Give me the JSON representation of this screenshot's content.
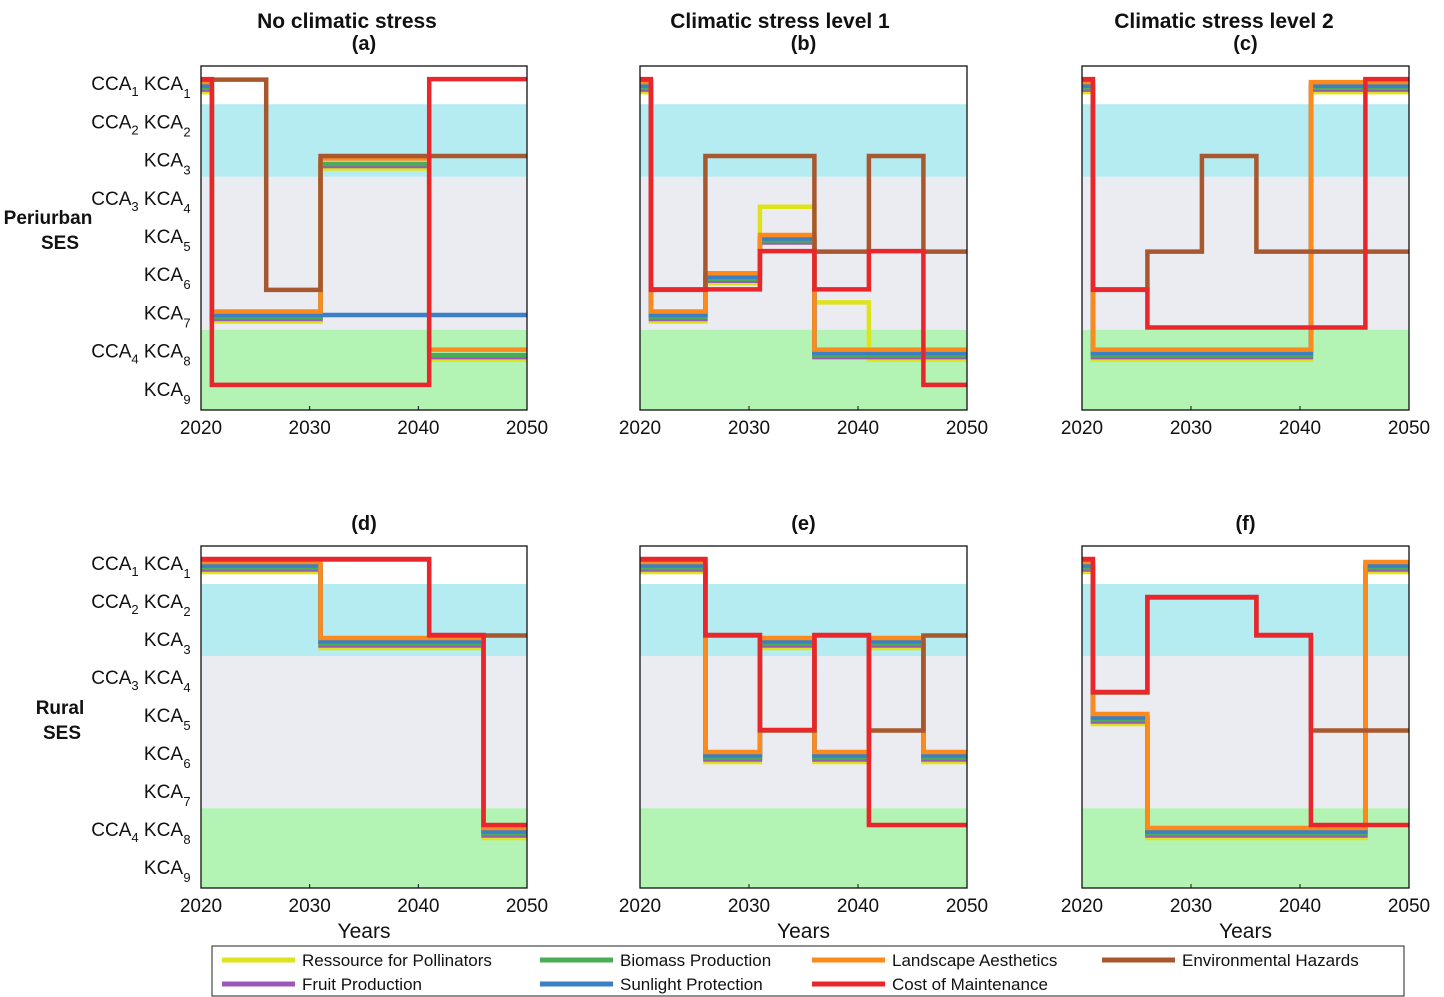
{
  "figure": {
    "column_titles": [
      "No climatic stress",
      "Climatic stress level 1",
      "Climatic stress level 2"
    ],
    "row_labels": [
      [
        "Periurban",
        "SES"
      ],
      [
        "Rural",
        "SES"
      ]
    ],
    "panel_letters": [
      "(a)",
      "(b)",
      "(c)",
      "(d)",
      "(e)",
      "(f)"
    ],
    "x_label": "Years",
    "y_ticks": [
      {
        "pre": "CCA",
        "pre_sub": "1",
        "main": "KCA",
        "sub": "1"
      },
      {
        "pre": "CCA",
        "pre_sub": "2",
        "main": "KCA",
        "sub": "2"
      },
      {
        "pre": "",
        "pre_sub": "",
        "main": "KCA",
        "sub": "3"
      },
      {
        "pre": "CCA",
        "pre_sub": "3",
        "main": "KCA",
        "sub": "4"
      },
      {
        "pre": "",
        "pre_sub": "",
        "main": "KCA",
        "sub": "5"
      },
      {
        "pre": "",
        "pre_sub": "",
        "main": "KCA",
        "sub": "6"
      },
      {
        "pre": "",
        "pre_sub": "",
        "main": "KCA",
        "sub": "7"
      },
      {
        "pre": "CCA",
        "pre_sub": "4",
        "main": "KCA",
        "sub": "8"
      },
      {
        "pre": "",
        "pre_sub": "",
        "main": "KCA",
        "sub": "9"
      }
    ],
    "background_bands": [
      {
        "from": 0.5,
        "to": 1.5,
        "color": "#ffffff"
      },
      {
        "from": 1.5,
        "to": 3.4,
        "color": "#b4ecf2"
      },
      {
        "from": 3.4,
        "to": 7.4,
        "color": "#ebebf2"
      },
      {
        "from": 7.4,
        "to": 9.5,
        "color": "#b3f3b3"
      }
    ]
  },
  "legend": [
    {
      "label": "Ressource for Pollinators",
      "color": "#dfe31c"
    },
    {
      "label": "Biomass Production",
      "color": "#4aad55"
    },
    {
      "label": "Landscape Aesthetics",
      "color": "#ff8a1c"
    },
    {
      "label": "Environmental Hazards",
      "color": "#a8582e"
    },
    {
      "label": "Fruit Production",
      "color": "#9b59b6"
    },
    {
      "label": "Sunlight Protection",
      "color": "#3b7fc4"
    },
    {
      "label": "Cost of Maintenance",
      "color": "#e8262b"
    }
  ],
  "chart_data": [
    {
      "type": "line",
      "panel": "(a)",
      "title": "No climatic stress",
      "xlim": [
        2020,
        2050
      ],
      "ylim": [
        0.5,
        9.5
      ],
      "x_ticks": [
        2020,
        2030,
        2040,
        2050
      ],
      "series": [
        {
          "name": "Ressource for Pollinators",
          "x": [
            2020,
            2021,
            2031,
            2041,
            2050
          ],
          "y": [
            1,
            7,
            3,
            8,
            8
          ]
        },
        {
          "name": "Fruit Production",
          "x": [
            2020,
            2021,
            2031,
            2041,
            2050
          ],
          "y": [
            1,
            7,
            3,
            8,
            8
          ]
        },
        {
          "name": "Biomass Production",
          "x": [
            2020,
            2021,
            2031,
            2041,
            2050
          ],
          "y": [
            1,
            7,
            3,
            8,
            8
          ]
        },
        {
          "name": "Sunlight Protection",
          "x": [
            2020,
            2021,
            2050
          ],
          "y": [
            1,
            7,
            7
          ]
        },
        {
          "name": "Landscape Aesthetics",
          "x": [
            2020,
            2021,
            2031,
            2041,
            2050
          ],
          "y": [
            1,
            7,
            3,
            8,
            8
          ]
        },
        {
          "name": "Environmental Hazards",
          "x": [
            2020,
            2026,
            2031,
            2050
          ],
          "y": [
            1,
            6.5,
            3,
            3
          ]
        },
        {
          "name": "Cost of Maintenance",
          "x": [
            2020,
            2021,
            2041,
            2050
          ],
          "y": [
            1,
            9,
            1,
            1
          ]
        }
      ]
    },
    {
      "type": "line",
      "panel": "(b)",
      "title": "Climatic stress level 1",
      "xlim": [
        2020,
        2050
      ],
      "ylim": [
        0.5,
        9.5
      ],
      "x_ticks": [
        2020,
        2030,
        2040,
        2050
      ],
      "series": [
        {
          "name": "Ressource for Pollinators",
          "x": [
            2020,
            2021,
            2026,
            2031,
            2036,
            2041,
            2050
          ],
          "y": [
            1,
            7,
            6,
            4,
            6.5,
            8,
            8
          ]
        },
        {
          "name": "Fruit Production",
          "x": [
            2020,
            2021,
            2026,
            2031,
            2036,
            2050
          ],
          "y": [
            1,
            7,
            6,
            5,
            8,
            8
          ]
        },
        {
          "name": "Biomass Production",
          "x": [
            2020,
            2021,
            2026,
            2031,
            2036,
            2050
          ],
          "y": [
            1,
            7,
            6,
            5,
            8,
            8
          ]
        },
        {
          "name": "Sunlight Protection",
          "x": [
            2020,
            2021,
            2026,
            2031,
            2036,
            2050
          ],
          "y": [
            1,
            7,
            6,
            5,
            8,
            8
          ]
        },
        {
          "name": "Landscape Aesthetics",
          "x": [
            2020,
            2021,
            2026,
            2031,
            2036,
            2050
          ],
          "y": [
            1,
            7,
            6,
            5,
            8,
            8
          ]
        },
        {
          "name": "Environmental Hazards",
          "x": [
            2020,
            2021,
            2026,
            2036,
            2041,
            2046,
            2050
          ],
          "y": [
            1,
            6.5,
            3,
            5.5,
            3,
            5.5,
            5.5
          ]
        },
        {
          "name": "Cost of Maintenance",
          "x": [
            2020,
            2021,
            2031,
            2036,
            2041,
            2046,
            2050
          ],
          "y": [
            1,
            6.5,
            5.5,
            6.5,
            5.5,
            9,
            9
          ]
        }
      ]
    },
    {
      "type": "line",
      "panel": "(c)",
      "title": "Climatic stress level 2",
      "xlim": [
        2020,
        2050
      ],
      "ylim": [
        0.5,
        9.5
      ],
      "x_ticks": [
        2020,
        2030,
        2040,
        2050
      ],
      "series": [
        {
          "name": "Ressource for Pollinators",
          "x": [
            2020,
            2021,
            2041,
            2050
          ],
          "y": [
            1,
            8,
            1,
            1
          ]
        },
        {
          "name": "Fruit Production",
          "x": [
            2020,
            2021,
            2041,
            2050
          ],
          "y": [
            1,
            8,
            1,
            1
          ]
        },
        {
          "name": "Biomass Production",
          "x": [
            2020,
            2021,
            2041,
            2050
          ],
          "y": [
            1,
            8,
            1,
            1
          ]
        },
        {
          "name": "Sunlight Protection",
          "x": [
            2020,
            2021,
            2041,
            2050
          ],
          "y": [
            1,
            8,
            1,
            1
          ]
        },
        {
          "name": "Landscape Aesthetics",
          "x": [
            2020,
            2021,
            2041,
            2050
          ],
          "y": [
            1,
            8,
            1,
            1
          ]
        },
        {
          "name": "Environmental Hazards",
          "x": [
            2020,
            2021,
            2026,
            2031,
            2036,
            2050
          ],
          "y": [
            1,
            6.5,
            5.5,
            3,
            5.5,
            5.5
          ]
        },
        {
          "name": "Cost of Maintenance",
          "x": [
            2020,
            2021,
            2026,
            2046,
            2050
          ],
          "y": [
            1,
            6.5,
            7.5,
            1,
            1
          ]
        }
      ]
    },
    {
      "type": "line",
      "panel": "(d)",
      "title": "",
      "xlim": [
        2020,
        2050
      ],
      "ylim": [
        0.5,
        9.5
      ],
      "x_ticks": [
        2020,
        2030,
        2040,
        2050
      ],
      "series": [
        {
          "name": "Ressource for Pollinators",
          "x": [
            2020,
            2031,
            2046,
            2050
          ],
          "y": [
            1,
            3,
            8,
            8
          ]
        },
        {
          "name": "Fruit Production",
          "x": [
            2020,
            2031,
            2046,
            2050
          ],
          "y": [
            1,
            3,
            8,
            8
          ]
        },
        {
          "name": "Biomass Production",
          "x": [
            2020,
            2031,
            2046,
            2050
          ],
          "y": [
            1,
            3,
            8,
            8
          ]
        },
        {
          "name": "Sunlight Protection",
          "x": [
            2020,
            2031,
            2046,
            2050
          ],
          "y": [
            1,
            3,
            8,
            8
          ]
        },
        {
          "name": "Landscape Aesthetics",
          "x": [
            2020,
            2031,
            2046,
            2050
          ],
          "y": [
            1,
            3,
            8,
            8
          ]
        },
        {
          "name": "Environmental Hazards",
          "x": [
            2020,
            2041,
            2050
          ],
          "y": [
            1,
            3,
            3
          ]
        },
        {
          "name": "Cost of Maintenance",
          "x": [
            2020,
            2041,
            2046,
            2050
          ],
          "y": [
            1,
            3,
            8,
            8
          ]
        }
      ]
    },
    {
      "type": "line",
      "panel": "(e)",
      "title": "",
      "xlim": [
        2020,
        2050
      ],
      "ylim": [
        0.5,
        9.5
      ],
      "x_ticks": [
        2020,
        2030,
        2040,
        2050
      ],
      "series": [
        {
          "name": "Ressource for Pollinators",
          "x": [
            2020,
            2026,
            2031,
            2036,
            2041,
            2046,
            2050
          ],
          "y": [
            1,
            6,
            3,
            6,
            3,
            6,
            6
          ]
        },
        {
          "name": "Fruit Production",
          "x": [
            2020,
            2026,
            2031,
            2036,
            2041,
            2046,
            2050
          ],
          "y": [
            1,
            6,
            3,
            6,
            3,
            6,
            6
          ]
        },
        {
          "name": "Biomass Production",
          "x": [
            2020,
            2026,
            2031,
            2036,
            2041,
            2046,
            2050
          ],
          "y": [
            1,
            6,
            3,
            6,
            3,
            6,
            6
          ]
        },
        {
          "name": "Sunlight Protection",
          "x": [
            2020,
            2026,
            2031,
            2036,
            2041,
            2046,
            2050
          ],
          "y": [
            1,
            6,
            3,
            6,
            3,
            6,
            6
          ]
        },
        {
          "name": "Landscape Aesthetics",
          "x": [
            2020,
            2026,
            2031,
            2036,
            2041,
            2046,
            2050
          ],
          "y": [
            1,
            6,
            3,
            6,
            3,
            6,
            6
          ]
        },
        {
          "name": "Environmental Hazards",
          "x": [
            2020,
            2026,
            2031,
            2036,
            2041,
            2046,
            2050
          ],
          "y": [
            1,
            3,
            5.5,
            3,
            5.5,
            3,
            3
          ]
        },
        {
          "name": "Cost of Maintenance",
          "x": [
            2020,
            2026,
            2031,
            2036,
            2041,
            2050
          ],
          "y": [
            1,
            3,
            5.5,
            3,
            8,
            8
          ]
        }
      ]
    },
    {
      "type": "line",
      "panel": "(f)",
      "title": "",
      "xlim": [
        2020,
        2050
      ],
      "ylim": [
        0.5,
        9.5
      ],
      "x_ticks": [
        2020,
        2030,
        2040,
        2050
      ],
      "series": [
        {
          "name": "Ressource for Pollinators",
          "x": [
            2020,
            2021,
            2026,
            2046,
            2050
          ],
          "y": [
            1,
            5,
            8,
            1,
            1
          ]
        },
        {
          "name": "Fruit Production",
          "x": [
            2020,
            2021,
            2026,
            2046,
            2050
          ],
          "y": [
            1,
            5,
            8,
            1,
            1
          ]
        },
        {
          "name": "Biomass Production",
          "x": [
            2020,
            2021,
            2026,
            2046,
            2050
          ],
          "y": [
            1,
            5,
            8,
            1,
            1
          ]
        },
        {
          "name": "Sunlight Protection",
          "x": [
            2020,
            2021,
            2026,
            2046,
            2050
          ],
          "y": [
            1,
            5,
            8,
            1,
            1
          ]
        },
        {
          "name": "Landscape Aesthetics",
          "x": [
            2020,
            2021,
            2026,
            2046,
            2050
          ],
          "y": [
            1,
            5,
            8,
            1,
            1
          ]
        },
        {
          "name": "Environmental Hazards",
          "x": [
            2020,
            2021,
            2026,
            2036,
            2041,
            2050
          ],
          "y": [
            1,
            4.5,
            2,
            3,
            5.5,
            5.5
          ]
        },
        {
          "name": "Cost of Maintenance",
          "x": [
            2020,
            2021,
            2026,
            2036,
            2041,
            2050
          ],
          "y": [
            1,
            4.5,
            2,
            3,
            8,
            8
          ]
        }
      ]
    }
  ]
}
